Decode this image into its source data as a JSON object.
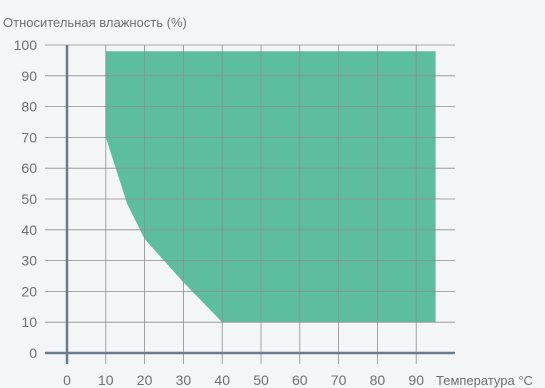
{
  "chart_data": {
    "type": "area",
    "title": "",
    "ylabel": "Относительная влажность (%)",
    "xlabel": "Температура °C",
    "xlim": [
      0,
      100
    ],
    "ylim": [
      0,
      100
    ],
    "x_ticks": [
      0,
      10,
      20,
      30,
      40,
      50,
      60,
      70,
      80,
      90
    ],
    "y_ticks": [
      0,
      10,
      20,
      30,
      40,
      50,
      60,
      70,
      80,
      90,
      100
    ],
    "grid": true,
    "series": [
      {
        "fill_color": "#5dbd9f",
        "points": [
          {
            "x": 10,
            "y": 98
          },
          {
            "x": 95,
            "y": 98
          },
          {
            "x": 95,
            "y": 10
          },
          {
            "x": 40,
            "y": 10
          },
          {
            "x": 30,
            "y": 23
          },
          {
            "x": 20,
            "y": 37
          },
          {
            "x": 15.5,
            "y": 48.5
          },
          {
            "x": 10,
            "y": 70
          }
        ]
      }
    ],
    "colors": {
      "grid": "#8e8e8e",
      "axis": "#6b7a8c",
      "text": "#6f6f6f"
    }
  }
}
